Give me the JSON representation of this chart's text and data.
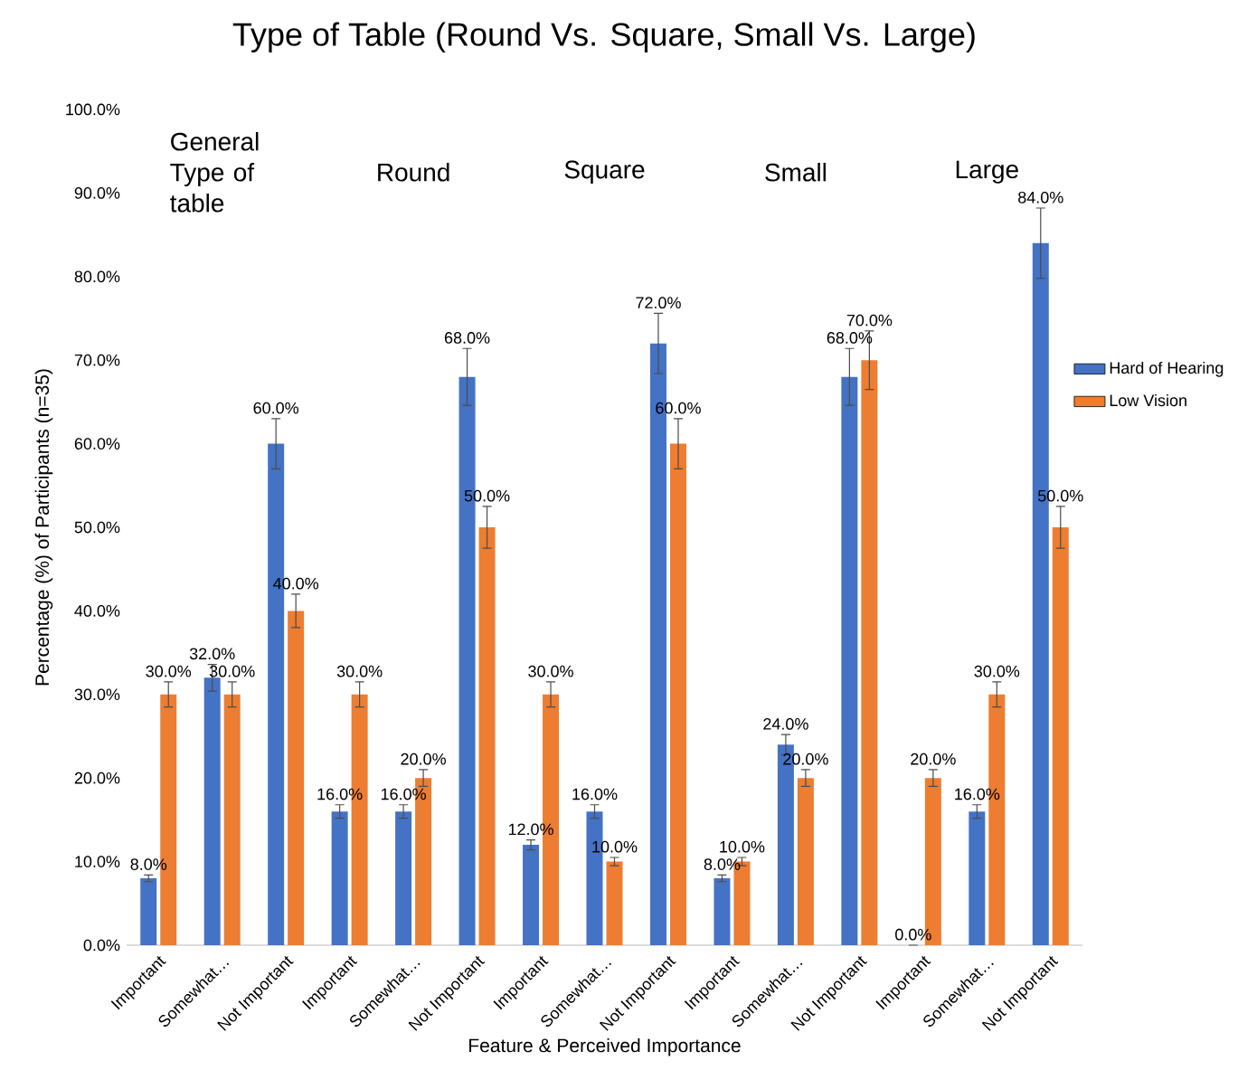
{
  "chart_data": {
    "type": "bar",
    "title": "Type of Table (Round Vs. Square, Small Vs. Large)",
    "xlabel": "Feature & Perceived Importance",
    "ylabel": "Percentage (%) of Participants (n=35)",
    "categories": [
      "Important",
      "Somewhat…",
      "Not Important",
      "Important",
      "Somewhat…",
      "Not Important",
      "Important",
      "Somewhat…",
      "Not Important",
      "Important",
      "Somewhat…",
      "Not Important",
      "Important",
      "Somewhat…",
      "Not Important"
    ],
    "series": [
      {
        "name": "Hard of Hearing",
        "color": "#4472c4",
        "values": [
          8,
          32,
          60,
          16,
          16,
          68,
          12,
          16,
          72,
          8,
          24,
          68,
          0,
          16,
          84
        ],
        "errors": [
          0.4,
          1.6,
          3,
          0.8,
          0.8,
          3.4,
          0.6,
          0.8,
          3.6,
          0.4,
          1.2,
          3.4,
          0,
          0.8,
          4.2
        ],
        "value_labels": [
          "8.0%",
          "32.0%",
          "60.0%",
          "16.0%",
          "16.0%",
          "68.0%",
          "12.0%",
          "16.0%",
          "72.0%",
          "8.0%",
          "24.0%",
          "68.0%",
          "0.0%",
          "16.0%",
          "84.0%"
        ]
      },
      {
        "name": "Low Vision",
        "color": "#ed7d31",
        "values": [
          30,
          30,
          40,
          30,
          20,
          50,
          30,
          10,
          60,
          10,
          20,
          70,
          20,
          30,
          50
        ],
        "errors": [
          1.5,
          1.5,
          2,
          1.5,
          1,
          2.5,
          1.5,
          0.5,
          3,
          0.5,
          1,
          3.5,
          1,
          1.5,
          2.5
        ],
        "value_labels": [
          "30.0%",
          "30.0%",
          "40.0%",
          "30.0%",
          "20.0%",
          "50.0%",
          "30.0%",
          "10.0%",
          "60.0%",
          "10.0%",
          "20.0%",
          "70.0%",
          "20.0%",
          "30.0%",
          "50.0%"
        ]
      }
    ],
    "annotations": [
      "General Type of table",
      "Round",
      "Square",
      "Small",
      "Large"
    ],
    "ylim": [
      0,
      100
    ],
    "yticks": [
      {
        "value": 0,
        "label": "0.0%"
      },
      {
        "value": 10,
        "label": "10.0%"
      },
      {
        "value": 20,
        "label": "20.0%"
      },
      {
        "value": 30,
        "label": "30.0%"
      },
      {
        "value": 40,
        "label": "40.0%"
      },
      {
        "value": 50,
        "label": "50.0%"
      },
      {
        "value": 60,
        "label": "60.0%"
      },
      {
        "value": 70,
        "label": "70.0%"
      },
      {
        "value": 80,
        "label": "80.0%"
      },
      {
        "value": 90,
        "label": "90.0%"
      },
      {
        "value": 100,
        "label": "100.0%"
      }
    ],
    "legend": "right",
    "grid": false
  }
}
